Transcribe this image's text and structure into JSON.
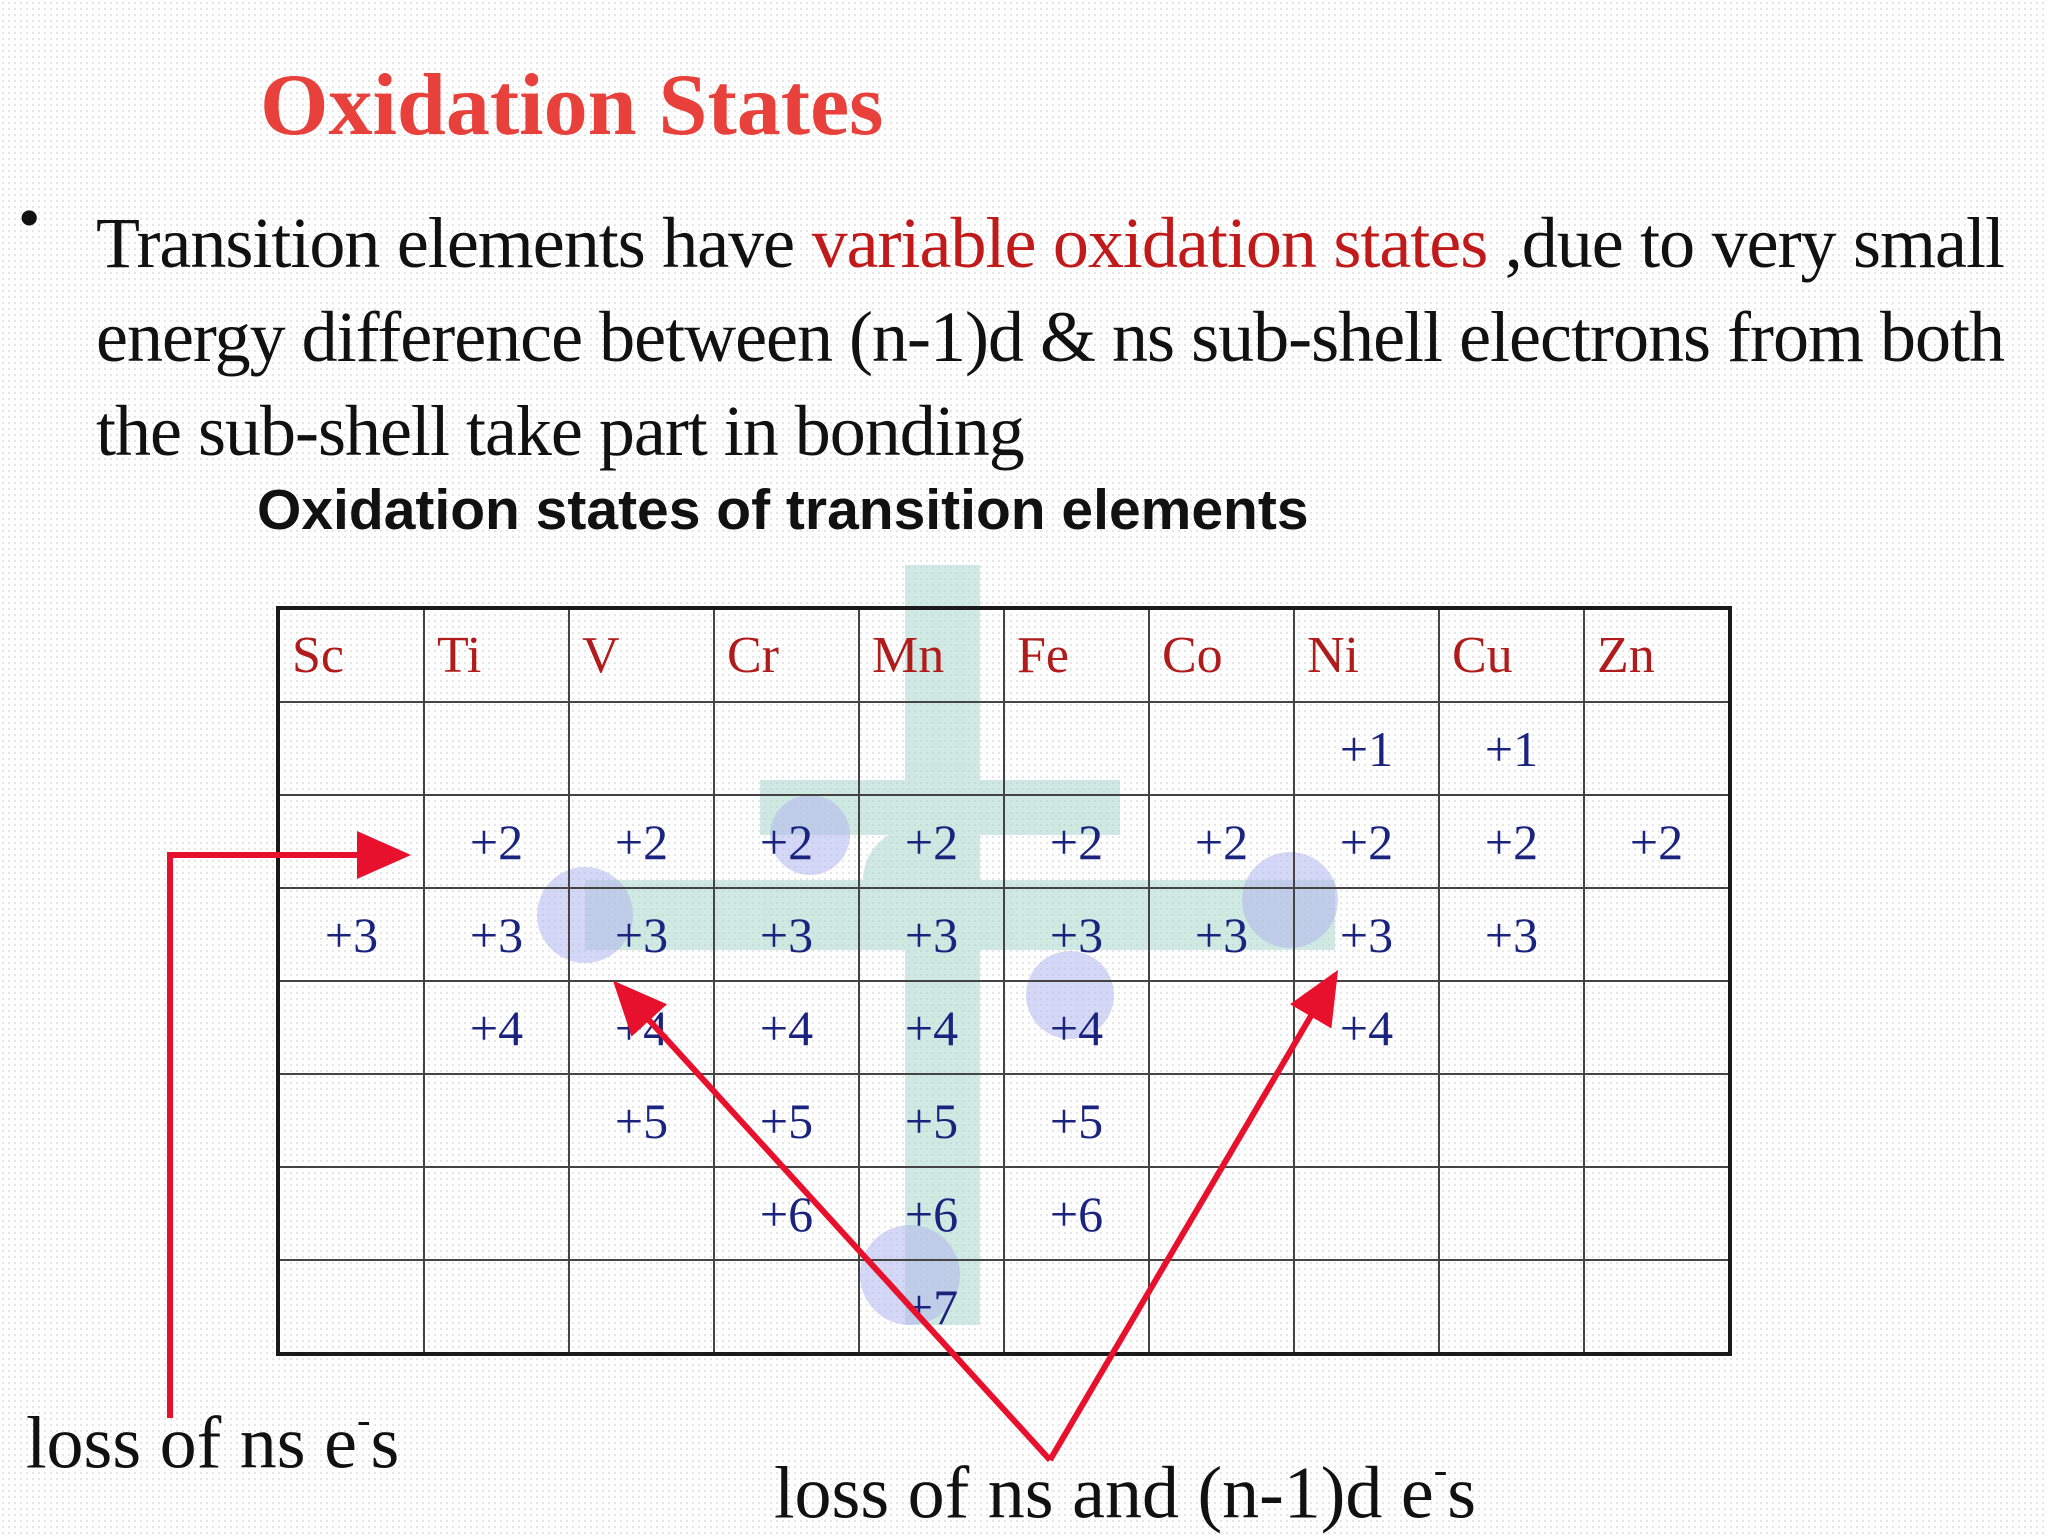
{
  "slide": {
    "title": "Oxidation States",
    "bullet_symbol": "•",
    "bullet_text_1": "Transition elements have ",
    "bullet_highlight": "variable oxidation states",
    "bullet_text_2": " ,due to very small energy difference between (n-1)d & ns sub-shell electrons from both the sub-shell take part in bonding",
    "subtitle": "Oxidation states of transition elements"
  },
  "table": {
    "elements": [
      "Sc",
      "Ti",
      "V",
      "Cr",
      "Mn",
      "Fe",
      "Co",
      "Ni",
      "Cu",
      "Zn"
    ],
    "rows": [
      [
        "",
        "",
        "",
        "",
        "",
        "",
        "",
        "+1",
        "+1",
        ""
      ],
      [
        "",
        "+2",
        "+2",
        "+2",
        "+2",
        "+2",
        "+2",
        "+2",
        "+2",
        "+2"
      ],
      [
        "+3",
        "+3",
        "+3",
        "+3",
        "+3",
        "+3",
        "+3",
        "+3",
        "+3",
        ""
      ],
      [
        "",
        "+4",
        "+4",
        "+4",
        "+4",
        "+4",
        "",
        "+4",
        "",
        ""
      ],
      [
        "",
        "",
        "+5",
        "+5",
        "+5",
        "+5",
        "",
        "",
        "",
        ""
      ],
      [
        "",
        "",
        "",
        "+6",
        "+6",
        "+6",
        "",
        "",
        "",
        ""
      ],
      [
        "",
        "",
        "",
        "",
        "+7",
        "",
        "",
        "",
        "",
        ""
      ]
    ]
  },
  "annotations": {
    "left_label_main": "loss of ns e",
    "left_label_sup": "-",
    "left_label_end": "s",
    "right_label_main": "loss of ns and (n-1)d e",
    "right_label_sup": "-",
    "right_label_end": "s"
  },
  "colors": {
    "title": "#e8403a",
    "highlight": "#c11a1a",
    "element_header": "#b01c1c",
    "table_values": "#1a237e",
    "arrows": "#e8112d"
  }
}
